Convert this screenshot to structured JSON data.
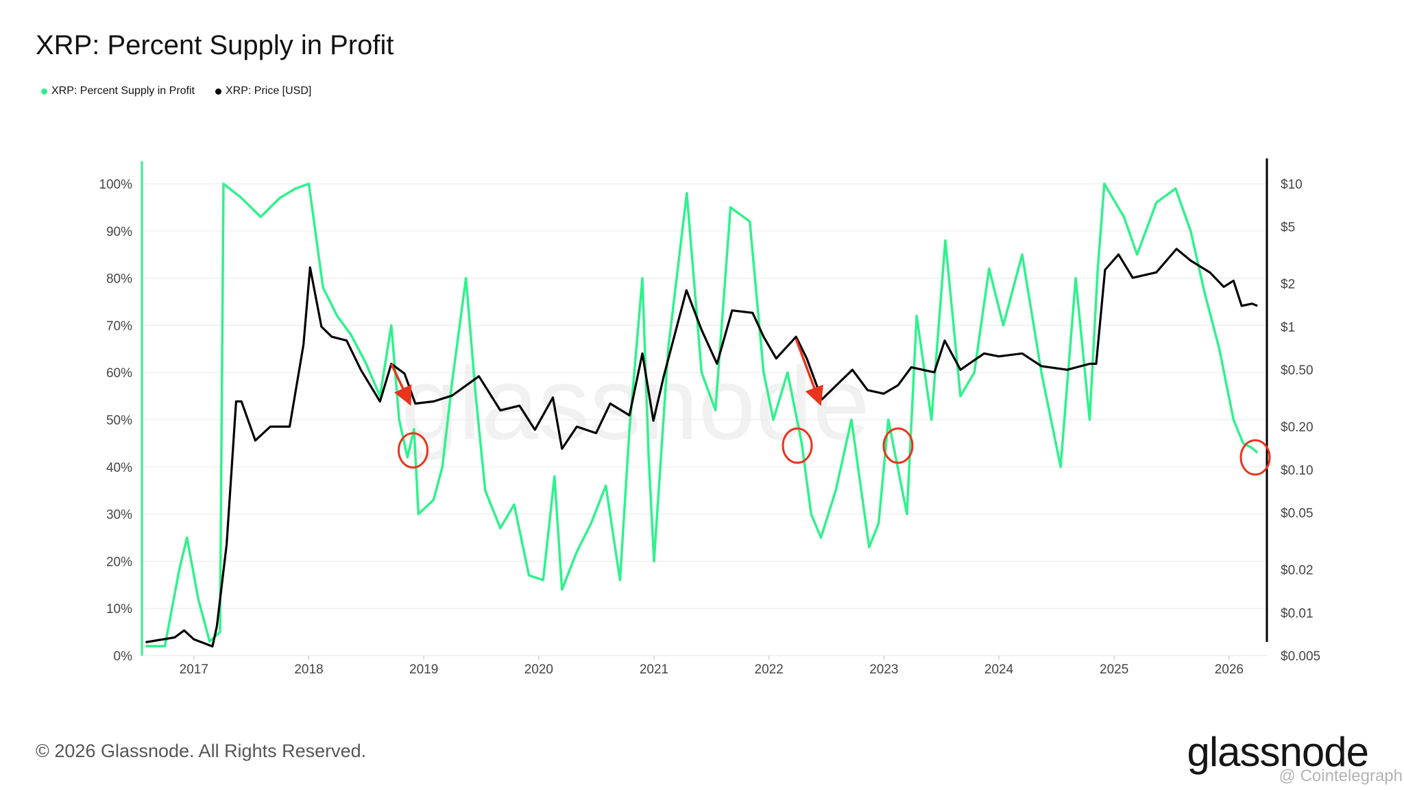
{
  "title": "XRP: Percent Supply in Profit",
  "legend": [
    {
      "label": "XRP: Percent Supply in Profit",
      "color": "#2ef28c"
    },
    {
      "label": "XRP: Price [USD]",
      "color": "#000000"
    }
  ],
  "watermark": "glassnode",
  "footer": "© 2026 Glassnode. All Rights Reserved.",
  "logo": "glassnode",
  "credit": "@ Cointelegraph",
  "colors": {
    "supply": "#2ef28c",
    "price": "#000000",
    "annotation": "#e8341c",
    "grid": "#ececec"
  },
  "chart_data": {
    "type": "line",
    "x_ticks": [
      "2017",
      "2018",
      "2019",
      "2020",
      "2021",
      "2022",
      "2023",
      "2024",
      "2025",
      "2026"
    ],
    "xlim": [
      "2016-07-20",
      "2026-05-01"
    ],
    "y_left_ticks": [
      "0%",
      "10%",
      "20%",
      "30%",
      "40%",
      "50%",
      "60%",
      "70%",
      "80%",
      "90%",
      "100%"
    ],
    "y_left_lim": [
      0,
      100
    ],
    "y_right_ticks": [
      {
        "label": "$10",
        "value": 10
      },
      {
        "label": "$5",
        "value": 5
      },
      {
        "label": "$2",
        "value": 2
      },
      {
        "label": "$1",
        "value": 1
      },
      {
        "label": "$0.50",
        "value": 0.5
      },
      {
        "label": "$0.20",
        "value": 0.2
      },
      {
        "label": "$0.10",
        "value": 0.1
      },
      {
        "label": "$0.05",
        "value": 0.05
      },
      {
        "label": "$0.02",
        "value": 0.02
      },
      {
        "label": "$0.01",
        "value": 0.01
      },
      {
        "label": "$0.005",
        "value": 0.005
      }
    ],
    "y_right_scale": "log",
    "y_right_lim": [
      0.005,
      10
    ],
    "grid": true,
    "series": [
      {
        "name": "XRP: Percent Supply in Profit",
        "axis": "left",
        "points": [
          [
            "2016-08-01",
            2
          ],
          [
            "2016-10-01",
            2
          ],
          [
            "2016-11-15",
            18
          ],
          [
            "2016-12-10",
            25
          ],
          [
            "2017-01-15",
            12
          ],
          [
            "2017-02-20",
            3
          ],
          [
            "2017-03-25",
            5
          ],
          [
            "2017-04-05",
            100
          ],
          [
            "2017-06-01",
            97
          ],
          [
            "2017-08-01",
            93
          ],
          [
            "2017-10-01",
            97
          ],
          [
            "2017-11-20",
            99
          ],
          [
            "2018-01-01",
            100
          ],
          [
            "2018-02-15",
            78
          ],
          [
            "2018-04-01",
            72
          ],
          [
            "2018-05-15",
            68
          ],
          [
            "2018-07-01",
            62
          ],
          [
            "2018-08-15",
            55
          ],
          [
            "2018-09-20",
            70
          ],
          [
            "2018-10-15",
            50
          ],
          [
            "2018-11-10",
            42
          ],
          [
            "2018-12-01",
            48
          ],
          [
            "2018-12-15",
            30
          ],
          [
            "2019-02-01",
            33
          ],
          [
            "2019-03-01",
            40
          ],
          [
            "2019-04-01",
            58
          ],
          [
            "2019-05-15",
            80
          ],
          [
            "2019-06-15",
            55
          ],
          [
            "2019-07-15",
            35
          ],
          [
            "2019-09-01",
            27
          ],
          [
            "2019-10-15",
            32
          ],
          [
            "2019-12-01",
            17
          ],
          [
            "2020-01-15",
            16
          ],
          [
            "2020-02-20",
            38
          ],
          [
            "2020-03-15",
            14
          ],
          [
            "2020-05-01",
            22
          ],
          [
            "2020-06-15",
            28
          ],
          [
            "2020-08-01",
            36
          ],
          [
            "2020-09-15",
            16
          ],
          [
            "2020-10-15",
            48
          ],
          [
            "2020-11-25",
            80
          ],
          [
            "2020-12-15",
            42
          ],
          [
            "2021-01-01",
            20
          ],
          [
            "2021-02-15",
            65
          ],
          [
            "2021-04-15",
            98
          ],
          [
            "2021-06-01",
            60
          ],
          [
            "2021-07-15",
            52
          ],
          [
            "2021-09-01",
            95
          ],
          [
            "2021-11-01",
            92
          ],
          [
            "2021-12-15",
            60
          ],
          [
            "2022-01-15",
            50
          ],
          [
            "2022-03-01",
            60
          ],
          [
            "2022-04-15",
            45
          ],
          [
            "2022-05-15",
            30
          ],
          [
            "2022-06-15",
            25
          ],
          [
            "2022-08-01",
            35
          ],
          [
            "2022-09-20",
            50
          ],
          [
            "2022-11-15",
            23
          ],
          [
            "2022-12-15",
            28
          ],
          [
            "2023-01-15",
            50
          ],
          [
            "2023-03-15",
            30
          ],
          [
            "2023-04-15",
            72
          ],
          [
            "2023-06-01",
            50
          ],
          [
            "2023-07-15",
            88
          ],
          [
            "2023-09-01",
            55
          ],
          [
            "2023-10-15",
            60
          ],
          [
            "2023-12-01",
            82
          ],
          [
            "2024-01-15",
            70
          ],
          [
            "2024-03-15",
            85
          ],
          [
            "2024-05-15",
            60
          ],
          [
            "2024-07-15",
            40
          ],
          [
            "2024-09-01",
            80
          ],
          [
            "2024-10-15",
            50
          ],
          [
            "2024-11-10",
            82
          ],
          [
            "2024-12-01",
            100
          ],
          [
            "2025-02-01",
            93
          ],
          [
            "2025-03-15",
            85
          ],
          [
            "2025-05-15",
            96
          ],
          [
            "2025-07-15",
            99
          ],
          [
            "2025-09-01",
            90
          ],
          [
            "2025-10-15",
            77
          ],
          [
            "2025-12-01",
            65
          ],
          [
            "2026-01-15",
            50
          ],
          [
            "2026-02-15",
            45
          ],
          [
            "2026-03-15",
            44
          ],
          [
            "2026-04-01",
            43
          ]
        ]
      },
      {
        "name": "XRP: Price [USD]",
        "axis": "right",
        "scale": "log",
        "points": [
          [
            "2016-08-01",
            0.0062
          ],
          [
            "2016-11-01",
            0.0067
          ],
          [
            "2016-12-01",
            0.0075
          ],
          [
            "2017-01-01",
            0.0065
          ],
          [
            "2017-03-01",
            0.0058
          ],
          [
            "2017-03-15",
            0.008
          ],
          [
            "2017-04-15",
            0.03
          ],
          [
            "2017-05-15",
            0.3
          ],
          [
            "2017-06-01",
            0.3
          ],
          [
            "2017-07-15",
            0.16
          ],
          [
            "2017-09-01",
            0.2
          ],
          [
            "2017-11-01",
            0.2
          ],
          [
            "2017-12-15",
            0.75
          ],
          [
            "2018-01-05",
            2.6
          ],
          [
            "2018-02-10",
            1.0
          ],
          [
            "2018-03-15",
            0.85
          ],
          [
            "2018-05-01",
            0.8
          ],
          [
            "2018-06-15",
            0.5
          ],
          [
            "2018-08-15",
            0.3
          ],
          [
            "2018-09-20",
            0.55
          ],
          [
            "2018-11-01",
            0.47
          ],
          [
            "2018-12-05",
            0.29
          ],
          [
            "2019-02-01",
            0.3
          ],
          [
            "2019-04-01",
            0.33
          ],
          [
            "2019-06-25",
            0.45
          ],
          [
            "2019-09-01",
            0.26
          ],
          [
            "2019-11-01",
            0.28
          ],
          [
            "2019-12-20",
            0.19
          ],
          [
            "2020-02-15",
            0.32
          ],
          [
            "2020-03-15",
            0.14
          ],
          [
            "2020-05-01",
            0.2
          ],
          [
            "2020-07-01",
            0.18
          ],
          [
            "2020-08-15",
            0.29
          ],
          [
            "2020-10-15",
            0.24
          ],
          [
            "2020-11-25",
            0.65
          ],
          [
            "2020-12-30",
            0.22
          ],
          [
            "2021-02-01",
            0.45
          ],
          [
            "2021-04-14",
            1.8
          ],
          [
            "2021-06-01",
            0.95
          ],
          [
            "2021-07-20",
            0.55
          ],
          [
            "2021-09-06",
            1.3
          ],
          [
            "2021-11-10",
            1.25
          ],
          [
            "2021-12-15",
            0.85
          ],
          [
            "2022-01-24",
            0.6
          ],
          [
            "2022-03-28",
            0.85
          ],
          [
            "2022-05-01",
            0.6
          ],
          [
            "2022-06-18",
            0.31
          ],
          [
            "2022-09-23",
            0.5
          ],
          [
            "2022-11-10",
            0.36
          ],
          [
            "2022-12-31",
            0.34
          ],
          [
            "2023-02-15",
            0.39
          ],
          [
            "2023-03-29",
            0.52
          ],
          [
            "2023-06-10",
            0.48
          ],
          [
            "2023-07-13",
            0.8
          ],
          [
            "2023-09-01",
            0.5
          ],
          [
            "2023-11-15",
            0.65
          ],
          [
            "2024-01-01",
            0.62
          ],
          [
            "2024-03-15",
            0.65
          ],
          [
            "2024-05-15",
            0.53
          ],
          [
            "2024-08-05",
            0.5
          ],
          [
            "2024-10-15",
            0.55
          ],
          [
            "2024-11-05",
            0.55
          ],
          [
            "2024-12-03",
            2.5
          ],
          [
            "2025-01-15",
            3.2
          ],
          [
            "2025-03-01",
            2.2
          ],
          [
            "2025-05-15",
            2.4
          ],
          [
            "2025-07-18",
            3.5
          ],
          [
            "2025-09-01",
            2.9
          ],
          [
            "2025-11-01",
            2.4
          ],
          [
            "2025-12-15",
            1.9
          ],
          [
            "2026-01-15",
            2.1
          ],
          [
            "2026-02-10",
            1.4
          ],
          [
            "2026-03-15",
            1.45
          ],
          [
            "2026-04-01",
            1.4
          ]
        ]
      }
    ],
    "annotations": {
      "arrows": [
        {
          "from": [
            "2018-09-20",
            0.55
          ],
          "to": [
            "2018-11-15",
            0.3
          ]
        },
        {
          "from": [
            "2022-03-28",
            0.82
          ],
          "to": [
            "2022-06-10",
            0.3
          ]
        }
      ],
      "circles": [
        {
          "date": "2018-11-28",
          "value": 43.5
        },
        {
          "date": "2022-04-01",
          "value": 44.5
        },
        {
          "date": "2023-02-15",
          "value": 44.5
        },
        {
          "date": "2026-03-25",
          "value": 42
        }
      ]
    }
  }
}
